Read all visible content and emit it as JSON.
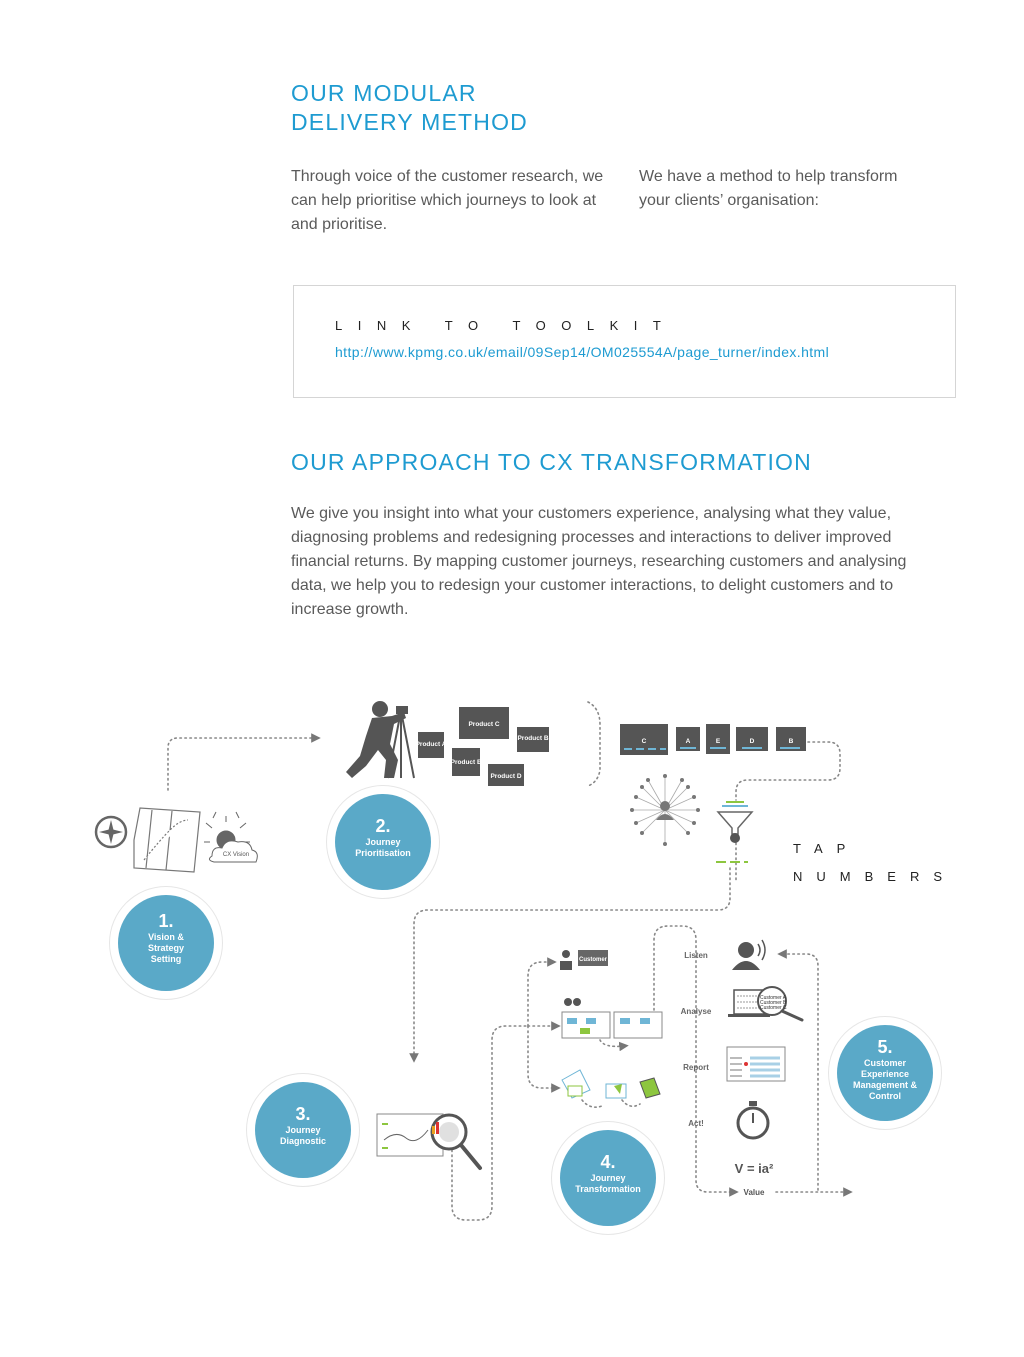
{
  "section1": {
    "title_line1": "OUR MODULAR",
    "title_line2": "DELIVERY METHOD",
    "col1": "Through voice of the customer research, we can help prioritise which journeys to look at and prioritise.",
    "col2": "We have a method to help transform your clients’ organisation:"
  },
  "toolkit": {
    "label": "LINK TO TOOLKIT",
    "url": "http://www.kpmg.co.uk/email/09Sep14/OM025554A/page_turner/index.html"
  },
  "section2": {
    "title": "OUR APPROACH TO CX TRANSFORMATION",
    "body": "We give you insight into what your customers experience, analysing what they value, diagnosing problems and redesigning processes and interactions to deliver improved financial returns. By mapping customer journeys, researching customers and analysing data, we help you to redesign your customer interactions, to delight customers and to increase growth."
  },
  "tap": {
    "line1": "TAP",
    "line2": "NUMBERS"
  },
  "steps": [
    {
      "num": "1.",
      "label_lines": [
        "Vision &",
        "Strategy",
        "Setting"
      ]
    },
    {
      "num": "2.",
      "label_lines": [
        "Journey",
        "Prioritisation"
      ]
    },
    {
      "num": "3.",
      "label_lines": [
        "Journey",
        "Diagnostic"
      ]
    },
    {
      "num": "4.",
      "label_lines": [
        "Journey",
        "Transformation"
      ]
    },
    {
      "num": "5.",
      "label_lines": [
        "Customer",
        "Experience",
        "Management &",
        "Control"
      ]
    }
  ],
  "diagram": {
    "cx_vision": "CX Vision",
    "products": [
      "Product C",
      "Product A",
      "Product B",
      "Product E",
      "Product D"
    ],
    "bar_letters": [
      "C",
      "A",
      "E",
      "D",
      "B"
    ],
    "customer": "Customer",
    "cycle": [
      "Listen",
      "Analyse",
      "Report",
      "Act!"
    ],
    "customers": [
      "Customer A",
      "Customer B",
      "Customer C"
    ],
    "formula": "V = ia²",
    "value": "Value"
  },
  "colors": {
    "accent": "#1e9bd1",
    "step": "#5aa9c8",
    "green": "#8dc63f",
    "dark": "#666666"
  }
}
